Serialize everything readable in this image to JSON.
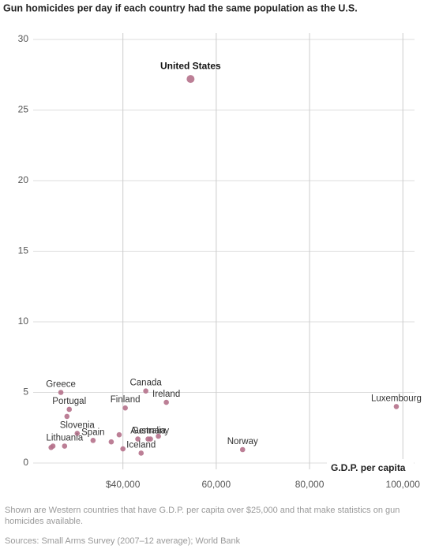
{
  "chart_data": {
    "type": "scatter",
    "title": "Gun homicides per day if each country had the same population as the U.S.",
    "x_label": "G.D.P. per capita",
    "xlim": [
      20000,
      102500
    ],
    "ylim": [
      0,
      30
    ],
    "xticks": [
      {
        "value": 40000,
        "label": "$40,000"
      },
      {
        "value": 60000,
        "label": "60,000"
      },
      {
        "value": 80000,
        "label": "80,000"
      },
      {
        "value": 100000,
        "label": "100,000"
      }
    ],
    "yticks": [
      0,
      5,
      10,
      15,
      20,
      25,
      30
    ],
    "grid": true,
    "series": [
      {
        "color": "#b5718b",
        "labels": [
          "United States",
          "Luxembourg",
          "Norway",
          "Canada",
          "Ireland",
          "Finland",
          "Greece",
          "Portugal",
          null,
          "Slovenia",
          "Lithuania",
          null,
          null,
          "Spain",
          null,
          null,
          null,
          "Germany",
          "Australia",
          null,
          null,
          "Iceland"
        ],
        "x": [
          54500,
          98600,
          65650,
          44900,
          49300,
          40500,
          26700,
          28500,
          28000,
          30200,
          27500,
          25000,
          24600,
          33600,
          37500,
          39200,
          40000,
          45900,
          45400,
          43200,
          47600,
          43900
        ],
        "values": [
          27.2,
          4.0,
          0.95,
          5.1,
          4.3,
          3.9,
          5.0,
          3.8,
          3.3,
          2.1,
          1.2,
          1.2,
          1.1,
          1.6,
          1.5,
          2.0,
          1.0,
          1.7,
          1.7,
          1.7,
          1.9,
          0.7
        ]
      }
    ],
    "notes": "Shown are Western countries that have G.D.P. per capita over $25,000 and that make statistics on gun homicides available.",
    "source": "Sources:  Small Arms Survey (2007–12 average); World Bank"
  }
}
